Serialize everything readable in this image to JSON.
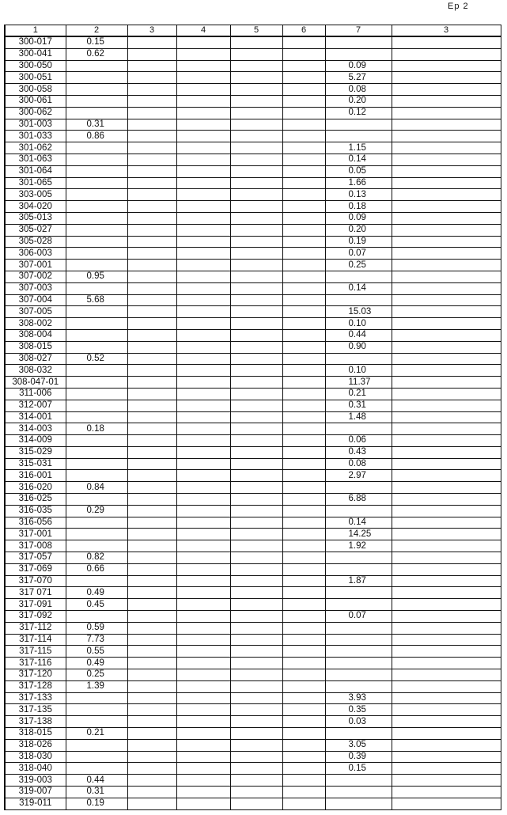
{
  "page_label": "Ep 2",
  "columns": [
    "1",
    "2",
    "3",
    "4",
    "5",
    "6",
    "7",
    "3"
  ],
  "rows": [
    [
      "300-017",
      "0.15",
      "",
      "",
      "",
      "",
      "",
      ""
    ],
    [
      "300-041",
      "0.62",
      "",
      "",
      "",
      "",
      "",
      ""
    ],
    [
      "300-050",
      "",
      "",
      "",
      "",
      "",
      "0.09",
      ""
    ],
    [
      "300-051",
      "",
      "",
      "",
      "",
      "",
      "5.27",
      ""
    ],
    [
      "300-058",
      "",
      "",
      "",
      "",
      "",
      "0.08",
      ""
    ],
    [
      "300-061",
      "",
      "",
      "",
      "",
      "",
      "0.20",
      ""
    ],
    [
      "300-062",
      "",
      "",
      "",
      "",
      "",
      "0.12",
      ""
    ],
    [
      "301-003",
      "0.31",
      "",
      "",
      "",
      "",
      "",
      ""
    ],
    [
      "301-033",
      "0.86",
      "",
      "",
      "",
      "",
      "",
      ""
    ],
    [
      "301-062",
      "",
      "",
      "",
      "",
      "",
      "1.15",
      ""
    ],
    [
      "301-063",
      "",
      "",
      "",
      "",
      "",
      "0.14",
      ""
    ],
    [
      "301-064",
      "",
      "",
      "",
      "",
      "",
      "0.05",
      ""
    ],
    [
      "301-065",
      "",
      "",
      "",
      "",
      "",
      "1.66",
      ""
    ],
    [
      "303-005",
      "",
      "",
      "",
      "",
      "",
      "0.13",
      ""
    ],
    [
      "304-020",
      "",
      "",
      "",
      "",
      "",
      "0.18",
      ""
    ],
    [
      "305-013",
      "",
      "",
      "",
      "",
      "",
      "0.09",
      ""
    ],
    [
      "305-027",
      "",
      "",
      "",
      "",
      "",
      "0.20",
      ""
    ],
    [
      "305-028",
      "",
      "",
      "",
      "",
      "",
      "0.19",
      ""
    ],
    [
      "306-003",
      "",
      "",
      "",
      "",
      "",
      "0.07",
      ""
    ],
    [
      "307-001",
      "",
      "",
      "",
      "",
      "",
      "0.25",
      ""
    ],
    [
      "307-002",
      "0.95",
      "",
      "",
      "",
      "",
      "",
      ""
    ],
    [
      "307-003",
      "",
      "",
      "",
      "",
      "",
      "0.14",
      ""
    ],
    [
      "307-004",
      "5.68",
      "",
      "",
      "",
      "",
      "",
      ""
    ],
    [
      "307-005",
      "",
      "",
      "",
      "",
      "",
      "15.03",
      ""
    ],
    [
      "308-002",
      "",
      "",
      "",
      "",
      "",
      "0.10",
      ""
    ],
    [
      "308-004",
      "",
      "",
      "",
      "",
      "",
      "0.44",
      ""
    ],
    [
      "308-015",
      "",
      "",
      "",
      "",
      "",
      "0.90",
      ""
    ],
    [
      "308-027",
      "0.52",
      "",
      "",
      "",
      "",
      "",
      ""
    ],
    [
      "308-032",
      "",
      "",
      "",
      "",
      "",
      "0.10",
      ""
    ],
    [
      "308-047-01",
      "",
      "",
      "",
      "",
      "",
      "11.37",
      ""
    ],
    [
      "311-006",
      "",
      "",
      "",
      "",
      "",
      "0.21",
      ""
    ],
    [
      "312-007",
      "",
      "",
      "",
      "",
      "",
      "0.31",
      ""
    ],
    [
      "314-001",
      "",
      "",
      "",
      "",
      "",
      "1.48",
      ""
    ],
    [
      "314-003",
      "0.18",
      "",
      "",
      "",
      "",
      "",
      ""
    ],
    [
      "314-009",
      "",
      "",
      "",
      "",
      "",
      "0.06",
      ""
    ],
    [
      "315-029",
      "",
      "",
      "",
      "",
      "",
      "0.43",
      ""
    ],
    [
      "315-031",
      "",
      "",
      "",
      "",
      "",
      "0.08",
      ""
    ],
    [
      "316-001",
      "",
      "",
      "",
      "",
      "",
      "2.97",
      ""
    ],
    [
      "316-020",
      "0.84",
      "",
      "",
      "",
      "",
      "",
      ""
    ],
    [
      "316-025",
      "",
      "",
      "",
      "",
      "",
      "6.88",
      ""
    ],
    [
      "316-035",
      "0.29",
      "",
      "",
      "",
      "",
      "",
      ""
    ],
    [
      "316-056",
      "",
      "",
      "",
      "",
      "",
      "0.14",
      ""
    ],
    [
      "317-001",
      "",
      "",
      "",
      "",
      "",
      "14.25",
      ""
    ],
    [
      "317-008",
      "",
      "",
      "",
      "",
      "",
      "1.92",
      ""
    ],
    [
      "317-057",
      "0.82",
      "",
      "",
      "",
      "",
      "",
      ""
    ],
    [
      "317-069",
      "0.66",
      "",
      "",
      "",
      "",
      "",
      ""
    ],
    [
      "317-070",
      "",
      "",
      "",
      "",
      "",
      "1.87",
      ""
    ],
    [
      "317 071",
      "0.49",
      "",
      "",
      "",
      "",
      "",
      ""
    ],
    [
      "317-091",
      "0.45",
      "",
      "",
      "",
      "",
      "",
      ""
    ],
    [
      "317-092",
      "",
      "",
      "",
      "",
      "",
      "0.07",
      ""
    ],
    [
      "317-112",
      "0.59",
      "",
      "",
      "",
      "",
      "",
      ""
    ],
    [
      "317-114",
      "7.73",
      "",
      "",
      "",
      "",
      "",
      ""
    ],
    [
      "317-115",
      "0.55",
      "",
      "",
      "",
      "",
      "",
      ""
    ],
    [
      "317-116",
      "0.49",
      "",
      "",
      "",
      "",
      "",
      ""
    ],
    [
      "317-120",
      "0.25",
      "",
      "",
      "",
      "",
      "",
      ""
    ],
    [
      "317-128",
      "1.39",
      "",
      "",
      "",
      "",
      "",
      ""
    ],
    [
      "317-133",
      "",
      "",
      "",
      "",
      "",
      "3.93",
      ""
    ],
    [
      "317-135",
      "",
      "",
      "",
      "",
      "",
      "0.35",
      ""
    ],
    [
      "317-138",
      "",
      "",
      "",
      "",
      "",
      "0.03",
      ""
    ],
    [
      "318-015",
      "0.21",
      "",
      "",
      "",
      "",
      "",
      ""
    ],
    [
      "318-026",
      "",
      "",
      "",
      "",
      "",
      "3.05",
      ""
    ],
    [
      "318-030",
      "",
      "",
      "",
      "",
      "",
      "0.39",
      ""
    ],
    [
      "318-040",
      "",
      "",
      "",
      "",
      "",
      "0.15",
      ""
    ],
    [
      "319-003",
      "0.44",
      "",
      "",
      "",
      "",
      "",
      ""
    ],
    [
      "319-007",
      "0.31",
      "",
      "",
      "",
      "",
      "",
      ""
    ],
    [
      "319-011",
      "0.19",
      "",
      "",
      "",
      "",
      "",
      ""
    ]
  ]
}
